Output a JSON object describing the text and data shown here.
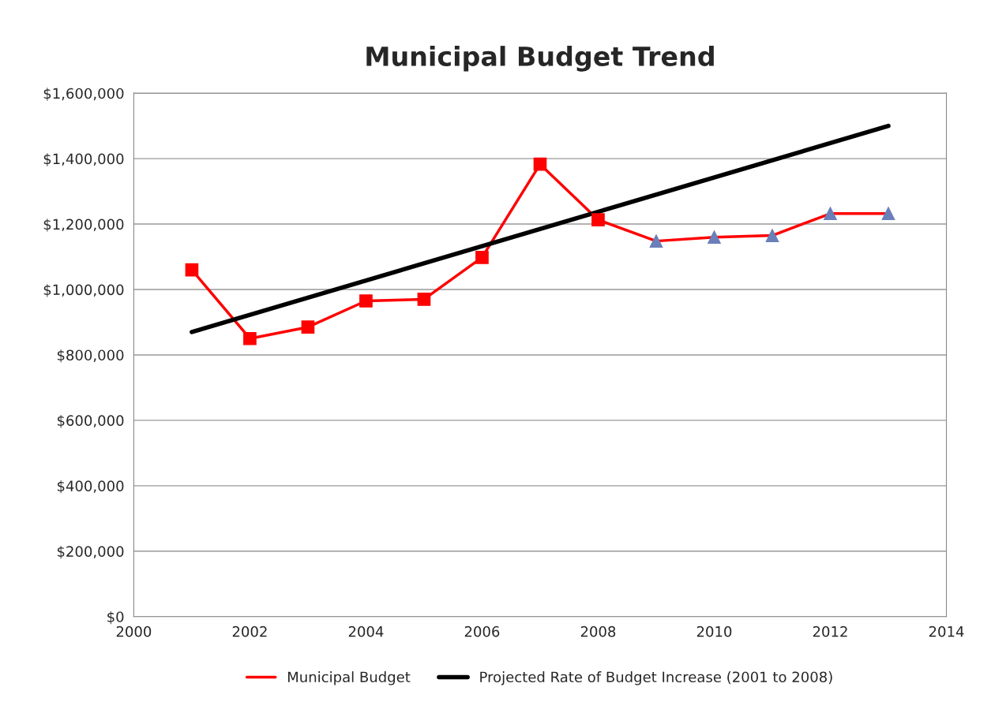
{
  "chart_data": {
    "type": "line",
    "title": "Municipal Budget Trend",
    "series": [
      {
        "name": "Municipal Budget",
        "color": "#ff0000",
        "marker": "none",
        "x": [
          2001,
          2002,
          2003,
          2004,
          2005,
          2006,
          2007,
          2008,
          2009,
          2010,
          2011,
          2012,
          2013
        ],
        "values": [
          1060000,
          850000,
          885000,
          965000,
          970000,
          1098000,
          1383000,
          1213000,
          1148000,
          1160000,
          1165000,
          1232000,
          1232000
        ]
      },
      {
        "type": "scatter",
        "color": "#ff0000",
        "marker": "square",
        "x": [
          2001,
          2002,
          2003,
          2004,
          2005,
          2006,
          2007,
          2008
        ],
        "values": [
          1060000,
          850000,
          885000,
          965000,
          970000,
          1098000,
          1383000,
          1213000
        ]
      },
      {
        "type": "scatter",
        "color": "#6b7fb8",
        "marker": "triangle",
        "x": [
          2009,
          2010,
          2011,
          2012,
          2013
        ],
        "values": [
          1148000,
          1160000,
          1165000,
          1232000,
          1232000
        ]
      },
      {
        "name": "Projected Rate of Budget Increase (2001 to 2008)",
        "color": "#000000",
        "marker": "none",
        "x": [
          2001,
          2013
        ],
        "values": [
          870000,
          1500000
        ]
      }
    ],
    "xlim": [
      2000,
      2014
    ],
    "xticks": [
      2000,
      2002,
      2004,
      2006,
      2008,
      2010,
      2012,
      2014
    ],
    "ylim": [
      0,
      1600000
    ],
    "yticks": [
      {
        "value": 0,
        "label": "$0"
      },
      {
        "value": 200000,
        "label": "$200,000"
      },
      {
        "value": 400000,
        "label": "$400,000"
      },
      {
        "value": 600000,
        "label": "$600,000"
      },
      {
        "value": 800000,
        "label": "$800,000"
      },
      {
        "value": 1000000,
        "label": "$1,000,000"
      },
      {
        "value": 1200000,
        "label": "$1,200,000"
      },
      {
        "value": 1400000,
        "label": "$1,400,000"
      },
      {
        "value": 1600000,
        "label": "$1,600,000"
      }
    ],
    "grid": "y",
    "legend": "bottom"
  }
}
